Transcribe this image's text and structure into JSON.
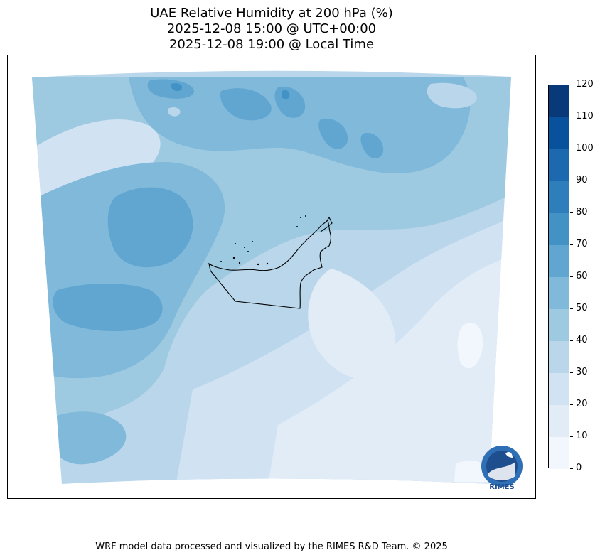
{
  "title": {
    "line1": "UAE Relative Humidity at 200 hPa (%)",
    "line2": "2025-12-08 15:00 @ UTC+00:00",
    "line3": "2025-12-08 19:00 @ Local Time"
  },
  "colorbar": {
    "ticks": [
      "0",
      "10",
      "20",
      "30",
      "40",
      "50",
      "60",
      "70",
      "80",
      "90",
      "100",
      "110",
      "120"
    ],
    "colors": [
      "#f2f7fd",
      "#e1ecf7",
      "#d1e2f3",
      "#bad6eb",
      "#9ecae1",
      "#80b9da",
      "#60a6d1",
      "#4292c6",
      "#2e7ebc",
      "#1d69af",
      "#08519c",
      "#083a7a"
    ]
  },
  "logo": {
    "text": "RIMES"
  },
  "footer": {
    "text": "WRF model data processed and visualized by the RIMES R&D Team. © 2025"
  },
  "chart_data": {
    "type": "heatmap",
    "title": "UAE Relative Humidity at 200 hPa (%)",
    "variable": "Relative Humidity",
    "level": "200 hPa",
    "units": "%",
    "valid_time_utc": "2025-12-08 15:00",
    "valid_time_local": "2025-12-08 19:00",
    "color_levels": [
      0,
      10,
      20,
      30,
      40,
      50,
      60,
      70,
      80,
      90,
      100,
      110,
      120
    ],
    "cmap": "Blues",
    "value_range": [
      10,
      70
    ],
    "colorbar_position": "right"
  }
}
